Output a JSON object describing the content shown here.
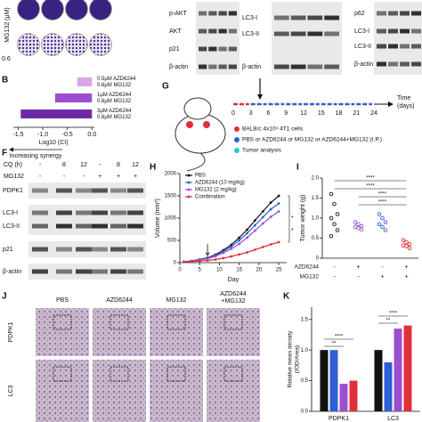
{
  "figure": {
    "a": {
      "axis_label": "MG132 (μM)",
      "row_label": "0.6"
    },
    "blots": [
      {
        "labels": [
          "p-AKT",
          "AKT",
          "p21",
          "β-actin"
        ]
      },
      {
        "labels": [
          "LC3-I",
          "LC3-II",
          "β-actin"
        ]
      },
      {
        "labels": [
          "p62",
          "LC3-I",
          "LC3-II",
          "β-actin"
        ]
      }
    ],
    "f": {
      "letter": "F",
      "header_rows": [
        {
          "name": "CQ (h)",
          "values": [
            "-",
            "8",
            "12",
            "-",
            "8",
            "12"
          ]
        },
        {
          "name": "MG132",
          "values": [
            "-",
            "-",
            "-",
            "+",
            "+",
            "+"
          ]
        }
      ],
      "labels": [
        "PDPK1",
        "LC3-I",
        "LC3-II",
        "p21",
        "β-actin"
      ]
    },
    "g": {
      "letter": "G",
      "ticks": [
        "0",
        "3",
        "6",
        "9",
        "12",
        "15",
        "18",
        "21",
        "24"
      ],
      "axis_label": [
        "Time",
        "(days)"
      ],
      "legend": [
        "BALB/c 4x10⁵ 4T1 cells",
        "PBS or AZD6244 or MG132 or AZD6244+MG132 (I.P.)",
        "Tumor analysis"
      ]
    },
    "j": {
      "letter": "J",
      "columns": [
        [
          "PBS"
        ],
        [
          "AZD6244"
        ],
        [
          "MG132"
        ],
        [
          "AZD6244",
          "+MG132"
        ]
      ],
      "rows": [
        "PDPK1",
        "LC3"
      ]
    }
  },
  "chart_data": [
    {
      "type": "hbar",
      "letter": "B",
      "categories": [
        [
          "0.5μM AZD6244",
          "0.6μM MG132"
        ],
        [
          "1μM AZD6244",
          "0.6μM MG132"
        ],
        [
          "3μM AZD6244",
          "0.6μM MG132"
        ]
      ],
      "values": [
        -0.3,
        -0.75,
        -1.45
      ],
      "colors": [
        "#d9a6e8",
        "#9a4fd0",
        "#6a2aa8"
      ],
      "xlim": [
        -1.6,
        0.05
      ],
      "xticks": [
        {
          "value": -1.5,
          "label": "-1.5"
        },
        {
          "value": -1,
          "label": "-1.0"
        },
        {
          "value": -0.5,
          "label": "-0.5"
        },
        {
          "value": 0,
          "label": "0.0"
        }
      ],
      "xlabel": "Log10 (CI)",
      "annotation": "Increasing synergy"
    },
    {
      "type": "line",
      "letter": "H",
      "x": [
        1,
        3,
        5,
        7,
        9,
        11,
        13,
        15,
        17,
        19,
        21,
        23,
        25
      ],
      "series": [
        {
          "name": "PBS",
          "color": "#111111",
          "values": [
            20,
            40,
            70,
            110,
            180,
            280,
            400,
            560,
            740,
            950,
            1150,
            1350,
            1500
          ]
        },
        {
          "name": "AZD6244 (10 mg/kg)",
          "color": "#2f5fd6",
          "values": [
            20,
            38,
            65,
            100,
            165,
            250,
            360,
            500,
            660,
            840,
            1020,
            1200,
            1330
          ]
        },
        {
          "name": "MG132 (2 mg/kg)",
          "color": "#9a4fd0",
          "values": [
            20,
            35,
            60,
            90,
            145,
            220,
            310,
            420,
            560,
            720,
            880,
            1030,
            1150
          ]
        },
        {
          "name": "Combination",
          "color": "#e0303a",
          "values": [
            15,
            25,
            35,
            50,
            70,
            100,
            140,
            185,
            230,
            290,
            350,
            410,
            460
          ]
        }
      ],
      "xlim": [
        0,
        27
      ],
      "xticks": [
        0,
        5,
        10,
        15,
        20,
        25
      ],
      "ylim": [
        0,
        2000
      ],
      "yticks": [
        0,
        500,
        1000,
        1500,
        2000
      ],
      "xlabel": "Day",
      "ylabel": "Volume (mm³)",
      "annotations": [
        "*",
        "*"
      ]
    },
    {
      "type": "strip",
      "letter": "I",
      "series": [
        {
          "color": "#111111",
          "values": [
            1.6,
            1.35,
            1.1,
            1.0,
            0.85,
            0.7,
            0.55
          ]
        },
        {
          "color": "#9a4fd0",
          "values": [
            0.9,
            0.85,
            0.8,
            0.78,
            0.75,
            0.72
          ]
        },
        {
          "color": "#2f5fd6",
          "values": [
            1.1,
            1.0,
            0.9,
            0.85,
            0.78,
            0.7
          ]
        },
        {
          "color": "#e0303a",
          "values": [
            0.45,
            0.4,
            0.35,
            0.32,
            0.3,
            0.25
          ]
        }
      ],
      "conditions": [
        {
          "name": "AZD6244",
          "signs": [
            "-",
            "+",
            "-",
            "+"
          ]
        },
        {
          "name": "MG132",
          "signs": [
            "-",
            "-",
            "+",
            "+"
          ]
        }
      ],
      "ylim": [
        0,
        2
      ],
      "yticks": [
        0,
        {
          "value": 0.5,
          "label": "0.5"
        },
        {
          "value": 1,
          "label": "1.0"
        },
        {
          "value": 1.5,
          "label": "1.5"
        },
        {
          "value": 2,
          "label": "2.0"
        }
      ],
      "ylabel": "Tumor weight (g)",
      "annotations": [
        "****",
        "****",
        "****",
        "****"
      ]
    },
    {
      "type": "groupbar",
      "letter": "K",
      "categories": [
        "PDPK1",
        "LC3"
      ],
      "series": [
        {
          "color": "#111111",
          "values": [
            1.0,
            1.0
          ]
        },
        {
          "color": "#2f5fd6",
          "values": [
            1.0,
            0.8
          ]
        },
        {
          "color": "#9a4fd0",
          "values": [
            0.45,
            1.35
          ]
        },
        {
          "color": "#e0303a",
          "values": [
            0.5,
            1.4
          ]
        }
      ],
      "ylim": [
        0,
        1.7
      ],
      "yticks": [
        {
          "value": 0,
          "label": "0.0"
        },
        {
          "value": 0.5,
          "label": "0.5"
        },
        {
          "value": 1,
          "label": "1.0"
        },
        {
          "value": 1.5,
          "label": "1.5"
        }
      ],
      "ylabel": [
        "Relative mean density",
        "(IOD/Area)"
      ],
      "annotations": [
        "****",
        "**",
        "**",
        "****"
      ]
    }
  ]
}
